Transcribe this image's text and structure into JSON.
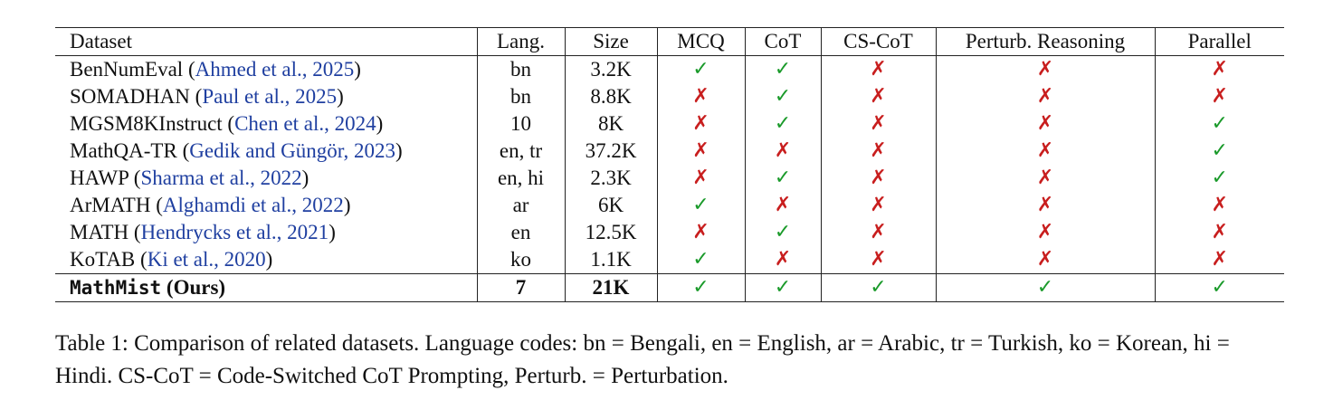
{
  "table": {
    "headers": [
      "Dataset",
      "Lang.",
      "Size",
      "MCQ",
      "CoT",
      "CS-CoT",
      "Perturb. Reasoning",
      "Parallel"
    ],
    "rows": [
      {
        "name": "BenNumEval",
        "cite_open": " (",
        "cite": "Ahmed et al., 2025",
        "cite_close": ")",
        "lang": "bn",
        "size": "3.2K",
        "mcq": "✓",
        "cot": "✓",
        "cscot": "✗",
        "perturb": "✗",
        "parallel": "✗"
      },
      {
        "name": "SOMADHAN",
        "cite_open": " (",
        "cite": "Paul et al., 2025",
        "cite_close": ")",
        "lang": "bn",
        "size": "8.8K",
        "mcq": "✗",
        "cot": "✓",
        "cscot": "✗",
        "perturb": "✗",
        "parallel": "✗"
      },
      {
        "name": "MGSM8KInstruct",
        "cite_open": " (",
        "cite": "Chen et al., 2024",
        "cite_close": ")",
        "lang": "10",
        "size": "8K",
        "mcq": "✗",
        "cot": "✓",
        "cscot": "✗",
        "perturb": "✗",
        "parallel": "✓"
      },
      {
        "name": "MathQA-TR",
        "cite_open": " (",
        "cite": "Gedik and Güngör, 2023",
        "cite_close": ")",
        "lang": "en, tr",
        "size": "37.2K",
        "mcq": "✗",
        "cot": "✗",
        "cscot": "✗",
        "perturb": "✗",
        "parallel": "✓"
      },
      {
        "name": "HAWP",
        "cite_open": " (",
        "cite": "Sharma et al., 2022",
        "cite_close": ")",
        "lang": "en, hi",
        "size": "2.3K",
        "mcq": "✗",
        "cot": "✓",
        "cscot": "✗",
        "perturb": "✗",
        "parallel": "✓"
      },
      {
        "name": "ArMATH",
        "cite_open": " (",
        "cite": "Alghamdi et al., 2022",
        "cite_close": ")",
        "lang": "ar",
        "size": "6K",
        "mcq": "✓",
        "cot": "✗",
        "cscot": "✗",
        "perturb": "✗",
        "parallel": "✗"
      },
      {
        "name": "MATH",
        "cite_open": " (",
        "cite": "Hendrycks et al., 2021",
        "cite_close": ")",
        "lang": "en",
        "size": "12.5K",
        "mcq": "✗",
        "cot": "✓",
        "cscot": "✗",
        "perturb": "✗",
        "parallel": "✗"
      },
      {
        "name": "KoTAB",
        "cite_open": " (",
        "cite": "Ki et al., 2020",
        "cite_close": ")",
        "lang": "ko",
        "size": "1.1K",
        "mcq": "✓",
        "cot": "✗",
        "cscot": "✗",
        "perturb": "✗",
        "parallel": "✗"
      }
    ],
    "ours": {
      "name": "MathMist",
      "suffix": " (Ours)",
      "lang": "7",
      "size": "21K",
      "mcq": "✓",
      "cot": "✓",
      "cscot": "✓",
      "perturb": "✓",
      "parallel": "✓"
    }
  },
  "caption": "Table 1: Comparison of related datasets. Language codes: bn = Bengali, en = English, ar = Arabic, tr = Turkish, ko = Korean, hi = Hindi. CS-CoT = Code-Switched CoT Prompting, Perturb. = Perturbation."
}
